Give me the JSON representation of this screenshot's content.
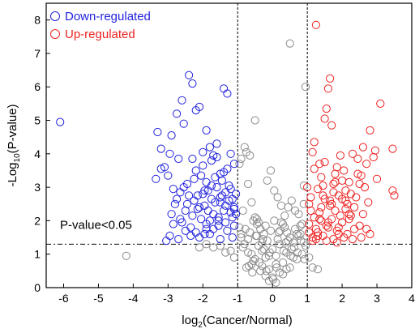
{
  "chart_data": {
    "type": "scatter",
    "xlabel_base": "log",
    "xlabel_sub": "2",
    "xlabel_rest": "(Cancer/Normal)",
    "ylabel_base": "-Log",
    "ylabel_sub": "10",
    "ylabel_rest": "(P-value)",
    "xlim": [
      -6.5,
      4
    ],
    "ylim": [
      0,
      8.5
    ],
    "x_ticks": [
      -6,
      -5,
      -4,
      -3,
      -2,
      -1,
      0,
      1,
      2,
      3,
      4
    ],
    "y_ticks": [
      0,
      1,
      2,
      3,
      4,
      5,
      6,
      7,
      8
    ],
    "x_tick_labels": [
      "-6",
      "-5",
      "-4",
      "-3",
      "-2",
      "-1",
      "0",
      "1",
      "2",
      "3",
      "4"
    ],
    "y_tick_labels": [
      "0",
      "1",
      "2",
      "3",
      "4",
      "5",
      "6",
      "7",
      "8"
    ],
    "fc_thresholds": [
      -1,
      1
    ],
    "p_threshold": 1.3,
    "annotation": "P-value<0.05",
    "legend_position": "top-left",
    "colors": {
      "down": "#2222dd",
      "up": "#ee2222",
      "ns": "#8c8c8c"
    },
    "series": [
      {
        "name": "Down-regulated",
        "key": "down",
        "x": [
          -6.1,
          -2.95,
          -3.2,
          -3.3,
          -3.1,
          -3.0,
          -2.95,
          -3.35,
          -3.2,
          -2.85,
          -2.7,
          -2.6,
          -2.9,
          -2.75,
          -2.55,
          -2.4,
          -2.3,
          -2.2,
          -2.1,
          -2.0,
          -1.9,
          -1.8,
          -1.7,
          -1.6,
          -1.5,
          -1.4,
          -1.3,
          -1.2,
          -1.1,
          -1.05,
          -2.1,
          -2.15,
          -1.75,
          -1.35,
          -2.65,
          -2.5,
          -2.25,
          -2.45,
          -1.95,
          -1.85,
          -1.65,
          -1.55,
          -1.45,
          -1.25,
          -1.15,
          -2.35,
          -2.05,
          -1.9,
          -1.7,
          -1.5,
          -1.3,
          -1.1,
          -2.8,
          -2.6,
          -2.4,
          -2.2,
          -2.0,
          -1.8,
          -1.6,
          -1.4,
          -1.2,
          -2.7,
          -2.5,
          -2.3,
          -2.1,
          -1.9,
          -1.7,
          -1.5,
          -1.3,
          -1.1,
          -2.9,
          -2.2,
          -1.95,
          -1.75,
          -1.55,
          -1.35,
          -1.15,
          -2.45,
          -2.25,
          -2.05,
          -1.85,
          -1.65,
          -1.45,
          -1.25,
          -1.05,
          -2.55,
          -2.35,
          -2.15,
          -1.95,
          -1.75,
          -1.55,
          -1.35,
          -1.15,
          -2.65,
          -2.85,
          -2.0,
          -1.8,
          -1.6,
          -1.4,
          -1.2,
          -3.05,
          -2.75,
          -2.3,
          -1.9,
          -1.5,
          -1.1
        ],
        "y": [
          4.95,
          4.0,
          4.15,
          4.65,
          3.6,
          3.35,
          1.55,
          3.25,
          3.55,
          2.95,
          3.85,
          5.6,
          4.55,
          5.2,
          4.9,
          6.35,
          6.1,
          5.3,
          5.4,
          4.05,
          4.7,
          4.2,
          3.95,
          4.3,
          3.4,
          5.95,
          5.8,
          4.0,
          3.7,
          2.2,
          1.5,
          2.75,
          3.05,
          2.85,
          2.05,
          2.3,
          2.6,
          3.1,
          2.45,
          2.9,
          2.55,
          2.0,
          3.2,
          2.6,
          2.1,
          1.8,
          3.35,
          1.9,
          2.2,
          2.7,
          1.7,
          1.85,
          2.5,
          1.95,
          2.75,
          3.5,
          2.8,
          1.6,
          3.0,
          2.3,
          2.95,
          1.45,
          1.7,
          2.15,
          2.4,
          3.15,
          1.75,
          2.55,
          3.55,
          2.4,
          2.2,
          1.65,
          2.9,
          2.65,
          1.85,
          2.45,
          2.65,
          2.5,
          3.25,
          2.05,
          2.3,
          3.3,
          2.75,
          3.05,
          2.8,
          3.0,
          1.55,
          2.35,
          1.6,
          3.8,
          2.1,
          1.95,
          1.5,
          2.85,
          1.9,
          3.65,
          2.0,
          3.9,
          3.45,
          2.25,
          1.4,
          2.65,
          3.85,
          1.75,
          1.45,
          2.35
        ]
      },
      {
        "name": "Up-regulated",
        "key": "up",
        "x": [
          1.25,
          1.65,
          1.6,
          1.55,
          1.5,
          1.7,
          3.1,
          1.2,
          1.15,
          1.35,
          2.8,
          2.95,
          3.45,
          2.6,
          2.3,
          2.45,
          2.05,
          1.85,
          1.95,
          1.4,
          1.8,
          2.2,
          2.5,
          2.7,
          2.9,
          3.0,
          3.45,
          3.5,
          1.05,
          1.1,
          1.3,
          1.45,
          1.75,
          1.9,
          2.0,
          2.1,
          2.25,
          2.35,
          2.55,
          2.65,
          2.75,
          2.15,
          1.2,
          1.35,
          1.5,
          1.65,
          1.8,
          1.95,
          2.1,
          2.4,
          2.6,
          1.05,
          1.25,
          1.4,
          1.55,
          1.7,
          1.85,
          2.0,
          2.2,
          2.5,
          2.8,
          1.15,
          1.3,
          1.45,
          1.6,
          1.75,
          1.9,
          2.05,
          2.3,
          2.7,
          1.1,
          1.2,
          1.5,
          1.8,
          2.1,
          2.45,
          1.65,
          1.35,
          1.0,
          1.25,
          1.55,
          1.85,
          2.15,
          2.35,
          2.55,
          1.4,
          1.7,
          2.0,
          2.25,
          1.05,
          1.3,
          1.6,
          1.9,
          2.2,
          1.15,
          1.45,
          1.75
        ],
        "y": [
          7.85,
          6.25,
          5.95,
          5.35,
          5.05,
          4.85,
          5.5,
          4.35,
          4.05,
          3.7,
          4.7,
          4.1,
          4.15,
          4.2,
          4.0,
          3.85,
          3.5,
          3.6,
          3.95,
          3.3,
          3.4,
          3.15,
          3.1,
          3.7,
          3.9,
          3.25,
          2.9,
          2.75,
          2.5,
          2.3,
          2.95,
          3.05,
          2.85,
          2.75,
          3.2,
          2.6,
          2.8,
          2.4,
          3.35,
          3.0,
          2.55,
          2.5,
          2.1,
          2.25,
          2.65,
          2.45,
          2.3,
          2.15,
          2.35,
          2.7,
          2.2,
          1.9,
          1.75,
          2.0,
          1.85,
          2.05,
          1.7,
          1.95,
          2.2,
          1.85,
          1.6,
          1.5,
          1.65,
          1.55,
          1.8,
          1.45,
          1.6,
          1.5,
          1.45,
          1.75,
          2.7,
          3.55,
          3.75,
          3.15,
          2.9,
          3.4,
          2.6,
          2.05,
          3.0,
          1.45,
          1.4,
          1.35,
          1.6,
          1.75,
          1.5,
          2.4,
          2.5,
          2.65,
          2.15,
          1.65,
          1.55,
          1.95,
          1.8,
          2.05,
          1.4,
          2.75,
          3.1
        ]
      },
      {
        "name": "",
        "key": "ns",
        "x": [
          -4.2,
          0.5,
          0.95,
          -0.5,
          -0.75,
          -0.8,
          -0.65,
          -0.9,
          -0.95,
          -0.7,
          -0.6,
          -0.85,
          -0.55,
          -0.45,
          -0.35,
          -0.25,
          -0.15,
          -0.05,
          0.05,
          0.15,
          0.25,
          0.35,
          0.45,
          0.55,
          0.65,
          0.75,
          0.85,
          0.9,
          -0.1,
          0.0,
          0.1,
          0.2,
          0.3,
          -0.2,
          -0.3,
          -0.4,
          0.4,
          0.6,
          0.7,
          0.8,
          -0.5,
          -0.6,
          -0.7,
          -0.8,
          -0.9,
          0.5,
          0.3,
          0.1,
          -0.1,
          -0.3,
          -0.45,
          -0.65,
          -0.85,
          0.15,
          0.35,
          0.55,
          0.75,
          0.95,
          -0.05,
          -0.25,
          0.05,
          0.25,
          0.45,
          0.65,
          0.85,
          -0.15,
          -0.35,
          -0.55,
          -0.75,
          -0.95,
          0.0,
          0.2,
          0.4,
          0.6,
          0.8,
          -0.2,
          -0.4,
          -0.6,
          0.1,
          -0.1,
          0.3,
          -0.3,
          0.5,
          -0.5,
          0.7,
          -0.7,
          0.9,
          -0.9,
          0.02,
          0.12,
          -0.08,
          0.22,
          -0.18,
          0.32,
          -0.28,
          0.42,
          -0.38,
          0.52,
          -0.48,
          0.62,
          0.72,
          -0.58,
          0.82,
          -0.68,
          0.92,
          -0.78,
          1.05,
          1.15,
          1.3,
          -1.1,
          -1.2,
          -1.35,
          -1.5,
          -1.7,
          -1.9,
          -2.1,
          0.9,
          -0.2,
          -0.45,
          0.18,
          0.38
        ],
        "y": [
          0.95,
          7.3,
          6.0,
          5.0,
          4.05,
          4.2,
          3.95,
          3.85,
          3.7,
          3.1,
          2.55,
          2.3,
          2.0,
          1.9,
          1.75,
          1.6,
          3.2,
          3.5,
          2.9,
          2.7,
          2.45,
          2.15,
          2.4,
          2.6,
          2.3,
          2.2,
          1.9,
          2.5,
          0.55,
          0.3,
          0.15,
          0.45,
          0.75,
          0.9,
          1.1,
          1.25,
          1.05,
          1.35,
          1.6,
          1.85,
          0.85,
          0.7,
          1.05,
          1.3,
          1.5,
          0.6,
          0.4,
          0.95,
          0.2,
          0.65,
          1.55,
          1.65,
          1.2,
          1.45,
          1.8,
          1.15,
          1.55,
          1.25,
          1.7,
          1.15,
          2.0,
          1.95,
          1.4,
          1.75,
          1.0,
          1.4,
          0.5,
          0.8,
          0.6,
          1.8,
          1.15,
          1.3,
          0.55,
          0.9,
          1.6,
          0.35,
          1.95,
          1.0,
          0.7,
          0.95,
          1.9,
          1.35,
          1.5,
          2.1,
          0.85,
          1.45,
          1.35,
          1.6,
          0.25,
          0.6,
          1.05,
          1.7,
          0.5,
          1.1,
          1.45,
          1.65,
          0.75,
          0.95,
          1.55,
          1.2,
          1.05,
          0.45,
          1.4,
          0.65,
          0.85,
          1.75,
          0.9,
          0.6,
          0.55,
          0.9,
          1.1,
          1.05,
          1.25,
          1.2,
          1.3,
          1.2,
          3.05,
          1.85,
          2.05,
          1.65,
          1.35
        ]
      }
    ],
    "legend": [
      {
        "label": "Down-regulated",
        "key": "down"
      },
      {
        "label": "Up-regulated",
        "key": "up"
      }
    ]
  }
}
